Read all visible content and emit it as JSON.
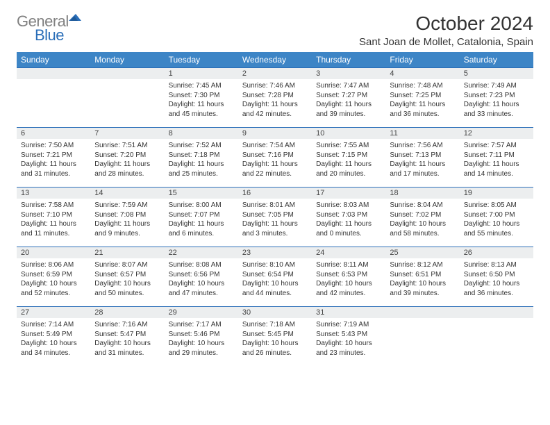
{
  "logo": {
    "word1": "General",
    "word2": "Blue",
    "color_gray": "#808080",
    "color_blue": "#2a6eb8"
  },
  "title": "October 2024",
  "location": "Sant Joan de Mollet, Catalonia, Spain",
  "header_bg": "#3d85c6",
  "header_text_color": "#ffffff",
  "numrow_bg": "#eceeef",
  "border_color": "#2a6eb8",
  "weekdays": [
    "Sunday",
    "Monday",
    "Tuesday",
    "Wednesday",
    "Thursday",
    "Friday",
    "Saturday"
  ],
  "weeks": [
    [
      null,
      null,
      {
        "n": "1",
        "sr": "7:45 AM",
        "ss": "7:30 PM",
        "dl": "11 hours and 45 minutes."
      },
      {
        "n": "2",
        "sr": "7:46 AM",
        "ss": "7:28 PM",
        "dl": "11 hours and 42 minutes."
      },
      {
        "n": "3",
        "sr": "7:47 AM",
        "ss": "7:27 PM",
        "dl": "11 hours and 39 minutes."
      },
      {
        "n": "4",
        "sr": "7:48 AM",
        "ss": "7:25 PM",
        "dl": "11 hours and 36 minutes."
      },
      {
        "n": "5",
        "sr": "7:49 AM",
        "ss": "7:23 PM",
        "dl": "11 hours and 33 minutes."
      }
    ],
    [
      {
        "n": "6",
        "sr": "7:50 AM",
        "ss": "7:21 PM",
        "dl": "11 hours and 31 minutes."
      },
      {
        "n": "7",
        "sr": "7:51 AM",
        "ss": "7:20 PM",
        "dl": "11 hours and 28 minutes."
      },
      {
        "n": "8",
        "sr": "7:52 AM",
        "ss": "7:18 PM",
        "dl": "11 hours and 25 minutes."
      },
      {
        "n": "9",
        "sr": "7:54 AM",
        "ss": "7:16 PM",
        "dl": "11 hours and 22 minutes."
      },
      {
        "n": "10",
        "sr": "7:55 AM",
        "ss": "7:15 PM",
        "dl": "11 hours and 20 minutes."
      },
      {
        "n": "11",
        "sr": "7:56 AM",
        "ss": "7:13 PM",
        "dl": "11 hours and 17 minutes."
      },
      {
        "n": "12",
        "sr": "7:57 AM",
        "ss": "7:11 PM",
        "dl": "11 hours and 14 minutes."
      }
    ],
    [
      {
        "n": "13",
        "sr": "7:58 AM",
        "ss": "7:10 PM",
        "dl": "11 hours and 11 minutes."
      },
      {
        "n": "14",
        "sr": "7:59 AM",
        "ss": "7:08 PM",
        "dl": "11 hours and 9 minutes."
      },
      {
        "n": "15",
        "sr": "8:00 AM",
        "ss": "7:07 PM",
        "dl": "11 hours and 6 minutes."
      },
      {
        "n": "16",
        "sr": "8:01 AM",
        "ss": "7:05 PM",
        "dl": "11 hours and 3 minutes."
      },
      {
        "n": "17",
        "sr": "8:03 AM",
        "ss": "7:03 PM",
        "dl": "11 hours and 0 minutes."
      },
      {
        "n": "18",
        "sr": "8:04 AM",
        "ss": "7:02 PM",
        "dl": "10 hours and 58 minutes."
      },
      {
        "n": "19",
        "sr": "8:05 AM",
        "ss": "7:00 PM",
        "dl": "10 hours and 55 minutes."
      }
    ],
    [
      {
        "n": "20",
        "sr": "8:06 AM",
        "ss": "6:59 PM",
        "dl": "10 hours and 52 minutes."
      },
      {
        "n": "21",
        "sr": "8:07 AM",
        "ss": "6:57 PM",
        "dl": "10 hours and 50 minutes."
      },
      {
        "n": "22",
        "sr": "8:08 AM",
        "ss": "6:56 PM",
        "dl": "10 hours and 47 minutes."
      },
      {
        "n": "23",
        "sr": "8:10 AM",
        "ss": "6:54 PM",
        "dl": "10 hours and 44 minutes."
      },
      {
        "n": "24",
        "sr": "8:11 AM",
        "ss": "6:53 PM",
        "dl": "10 hours and 42 minutes."
      },
      {
        "n": "25",
        "sr": "8:12 AM",
        "ss": "6:51 PM",
        "dl": "10 hours and 39 minutes."
      },
      {
        "n": "26",
        "sr": "8:13 AM",
        "ss": "6:50 PM",
        "dl": "10 hours and 36 minutes."
      }
    ],
    [
      {
        "n": "27",
        "sr": "7:14 AM",
        "ss": "5:49 PM",
        "dl": "10 hours and 34 minutes."
      },
      {
        "n": "28",
        "sr": "7:16 AM",
        "ss": "5:47 PM",
        "dl": "10 hours and 31 minutes."
      },
      {
        "n": "29",
        "sr": "7:17 AM",
        "ss": "5:46 PM",
        "dl": "10 hours and 29 minutes."
      },
      {
        "n": "30",
        "sr": "7:18 AM",
        "ss": "5:45 PM",
        "dl": "10 hours and 26 minutes."
      },
      {
        "n": "31",
        "sr": "7:19 AM",
        "ss": "5:43 PM",
        "dl": "10 hours and 23 minutes."
      },
      null,
      null
    ]
  ],
  "labels": {
    "sunrise": "Sunrise:",
    "sunset": "Sunset:",
    "daylight": "Daylight:"
  }
}
